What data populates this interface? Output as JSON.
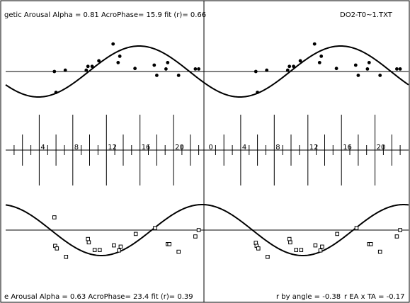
{
  "header": {
    "top_left": "getic Arousal  Alpha =  0.81   AcroPhase=  15.9  fit  (r)= 0.66",
    "top_right": "DO2-T0~1.TXT"
  },
  "footer": {
    "bottom_left": "e Arousal   Alpha =  0.63   AcroPhase=  23.4  fit  (r)= 0.39",
    "bottom_mid": "r by angle = -0.38",
    "bottom_right": "r  EA x TA = -0.17"
  },
  "chart_data": [
    {
      "type": "scatter",
      "title": "getic Arousal  Alpha =  0.81   AcroPhase=  15.9  fit  (r)= 0.66",
      "x_label": "",
      "y_label": "",
      "xlim": [
        0,
        48
      ],
      "ylim": [
        -1.25,
        1.25
      ],
      "xticks_labels": [
        "4",
        "8",
        "12",
        "16",
        "20",
        "0",
        "4",
        "8",
        "12",
        "16",
        "20"
      ],
      "xticks_values": [
        4,
        8,
        12,
        16,
        20,
        24,
        28,
        32,
        36,
        40,
        44
      ],
      "marker": "filled-circle",
      "fit": {
        "type": "cosinor",
        "period": 24,
        "acrophase": 15.9,
        "amplitude": 1.0,
        "mesor": 0.0
      },
      "series": [
        {
          "x": [
            5.8,
            6.0,
            7.1,
            9.6,
            9.8,
            10.3,
            11.1,
            12.8,
            13.4,
            13.6,
            15.4,
            17.7,
            18.0,
            19.1,
            19.3,
            20.6,
            22.6,
            23.0,
            29.8,
            30.0,
            31.1,
            33.6,
            33.8,
            34.3,
            35.1,
            36.8,
            37.4,
            37.6,
            39.4,
            41.7,
            42.0,
            43.1,
            43.3,
            44.6,
            46.6,
            47.0
          ],
          "y": [
            0.0,
            -0.82,
            0.05,
            0.05,
            0.2,
            0.2,
            0.42,
            1.08,
            0.35,
            0.6,
            0.12,
            0.25,
            -0.15,
            0.1,
            0.35,
            -0.15,
            0.1,
            0.1,
            0.0,
            -0.82,
            0.05,
            0.05,
            0.2,
            0.2,
            0.42,
            1.08,
            0.35,
            0.6,
            0.12,
            0.25,
            -0.15,
            0.1,
            0.35,
            -0.15,
            0.1,
            0.1
          ]
        }
      ]
    },
    {
      "type": "scatter",
      "title": "e Arousal   Alpha =  0.63   AcroPhase=  23.4  fit  (r)= 0.39",
      "x_label": "",
      "y_label": "",
      "xlim": [
        0,
        48
      ],
      "ylim": [
        -1.25,
        1.25
      ],
      "xticks_labels": [
        "4",
        "8",
        "12",
        "16",
        "20",
        "0",
        "4",
        "8",
        "12",
        "16",
        "20"
      ],
      "xticks_values": [
        4,
        8,
        12,
        16,
        20,
        24,
        28,
        32,
        36,
        40,
        44
      ],
      "marker": "open-square",
      "fit": {
        "type": "cosinor",
        "period": 24,
        "acrophase": 23.4,
        "amplitude": 1.0,
        "mesor": 0.0
      },
      "series": [
        {
          "x": [
            5.8,
            5.9,
            6.1,
            7.2,
            9.8,
            9.9,
            10.6,
            11.2,
            12.9,
            13.5,
            13.7,
            15.5,
            17.8,
            19.3,
            19.5,
            20.6,
            22.6,
            23.0,
            29.8,
            29.9,
            30.1,
            31.2,
            33.8,
            33.9,
            34.6,
            35.2,
            36.9,
            37.5,
            37.7,
            39.5,
            41.8,
            43.3,
            43.5,
            44.6,
            46.6,
            47.0
          ],
          "y": [
            0.5,
            -0.62,
            -0.72,
            -1.05,
            -0.35,
            -0.48,
            -0.78,
            -0.78,
            -0.6,
            -0.8,
            -0.65,
            -0.15,
            0.08,
            -0.55,
            -0.55,
            -0.85,
            -0.25,
            0.0,
            -0.5,
            -0.62,
            -0.72,
            -1.05,
            -0.35,
            -0.48,
            -0.78,
            -0.78,
            -0.6,
            -0.8,
            -0.65,
            -0.15,
            0.08,
            -0.55,
            -0.55,
            -0.85,
            -0.25,
            0.0
          ]
        }
      ]
    }
  ]
}
